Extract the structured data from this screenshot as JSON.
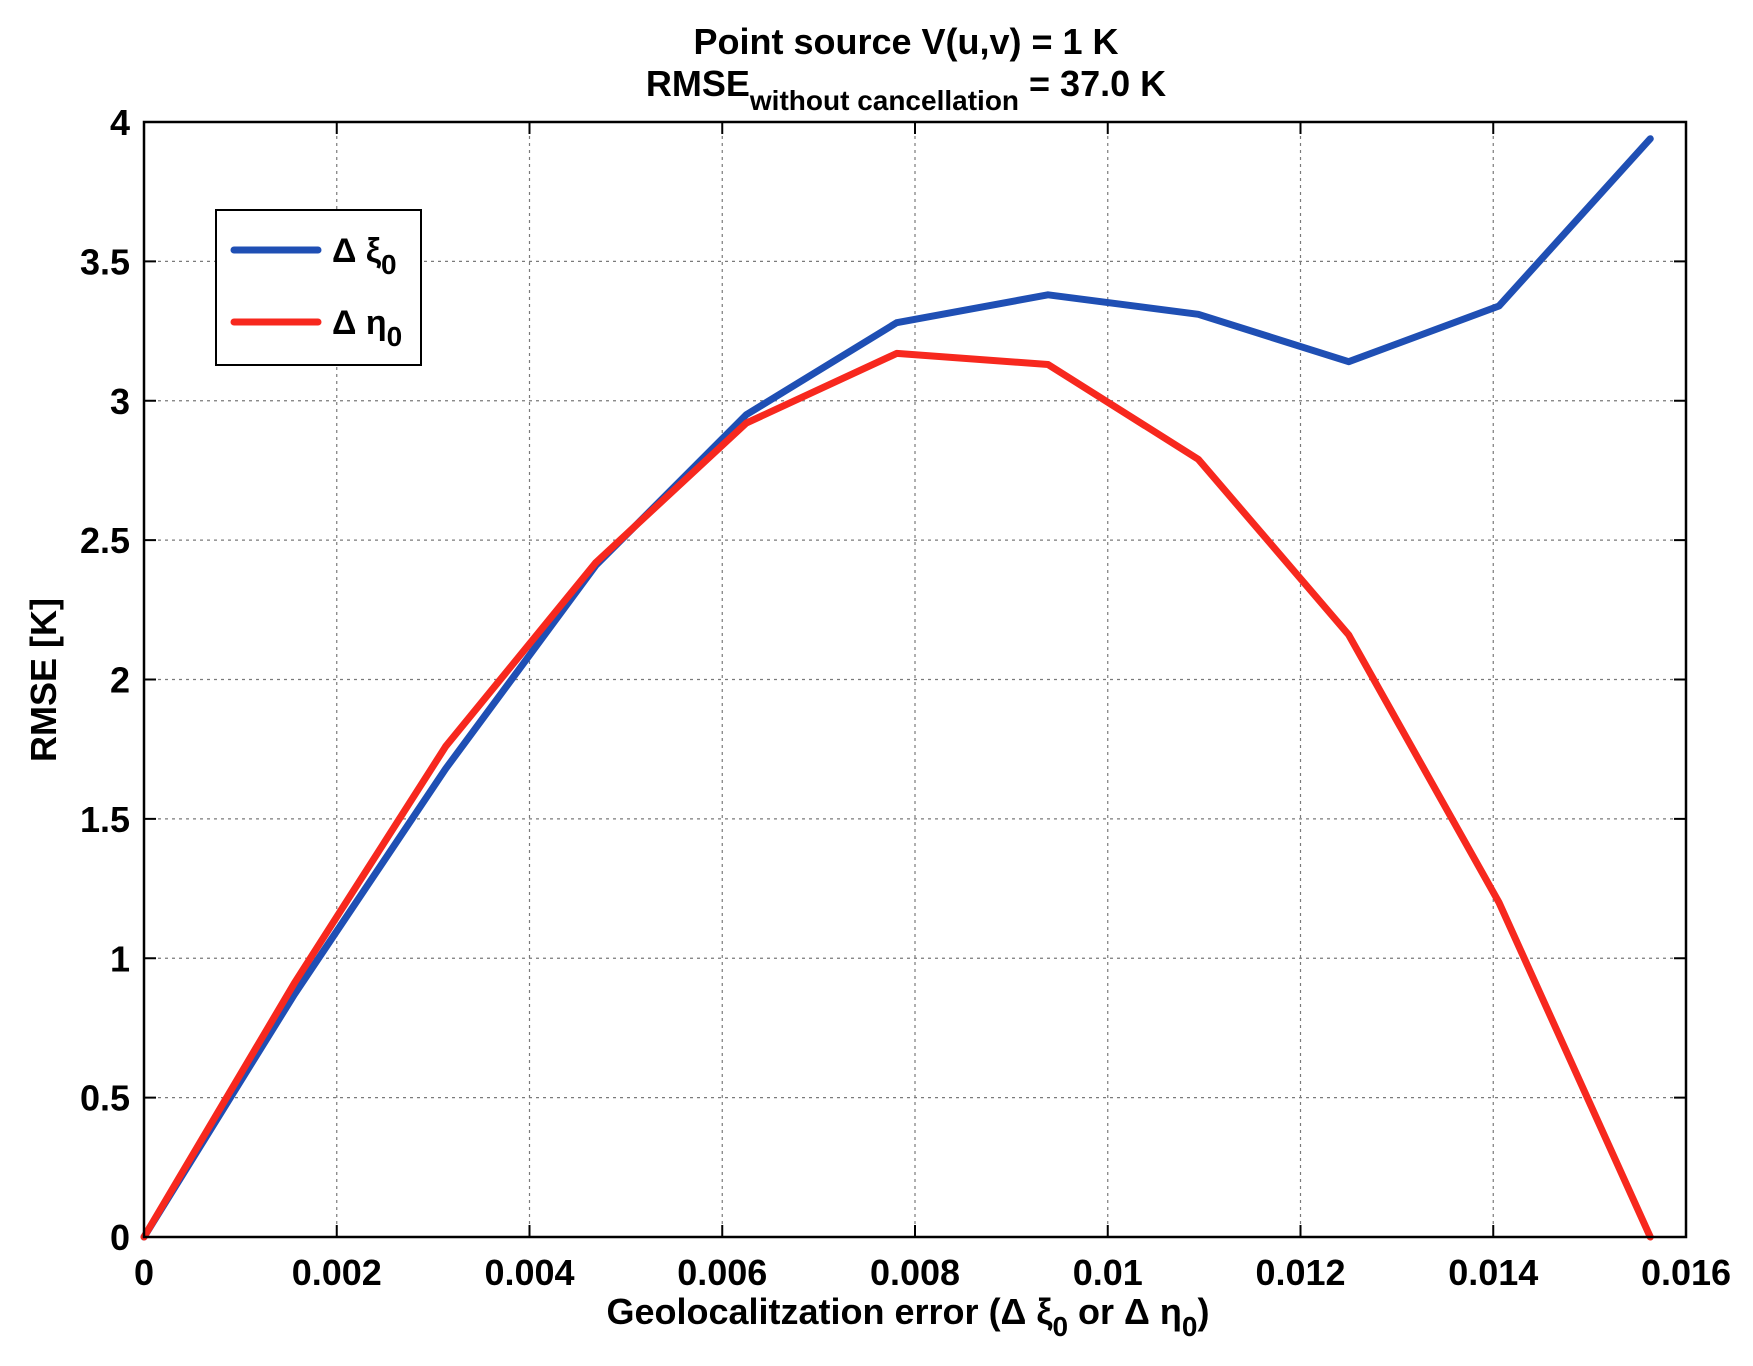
{
  "chart_data": {
    "type": "line",
    "title_line1": "Point source V(u,v) = 1 K",
    "title_line2_main": "RMSE",
    "title_line2_sub": "without cancellation",
    "title_line2_value": " = 37.0 K",
    "xlabel_prefix": "Geolocalitzation error (Δ ξ",
    "xlabel_sub1": "0",
    "xlabel_mid": " or Δ η",
    "xlabel_sub2": "0",
    "xlabel_suffix": ")",
    "ylabel": "RMSE [K]",
    "xlim": [
      0,
      0.016
    ],
    "ylim": [
      0,
      4
    ],
    "x_ticks": [
      0,
      0.002,
      0.004,
      0.006,
      0.008,
      0.01,
      0.012,
      0.014,
      0.016
    ],
    "x_tick_labels": [
      "0",
      "0.002",
      "0.004",
      "0.006",
      "0.008",
      "0.01",
      "0.012",
      "0.014",
      "0.016"
    ],
    "y_ticks": [
      0,
      0.5,
      1,
      1.5,
      2,
      2.5,
      3,
      3.5,
      4
    ],
    "y_tick_labels": [
      "0",
      "0.5",
      "1",
      "1.5",
      "2",
      "2.5",
      "3",
      "3.5",
      "4"
    ],
    "grid": true,
    "legend_position": "top-left",
    "series": [
      {
        "name_main": "Δ ξ",
        "name_sub": "0",
        "color": "#1f4fb4",
        "x": [
          0,
          0.00156,
          0.00313,
          0.00469,
          0.00625,
          0.00781,
          0.00938,
          0.01094,
          0.0125,
          0.01406,
          0.01563
        ],
        "y": [
          0,
          0.87,
          1.68,
          2.41,
          2.95,
          3.28,
          3.38,
          3.31,
          3.14,
          3.34,
          3.94
        ]
      },
      {
        "name_main": "Δ η",
        "name_sub": "0",
        "color": "#f7281e",
        "x": [
          0,
          0.00156,
          0.00313,
          0.00469,
          0.00625,
          0.00781,
          0.00938,
          0.01094,
          0.0125,
          0.01406,
          0.01563
        ],
        "y": [
          0,
          0.91,
          1.76,
          2.42,
          2.92,
          3.17,
          3.13,
          2.79,
          2.16,
          1.2,
          0
        ]
      }
    ]
  }
}
